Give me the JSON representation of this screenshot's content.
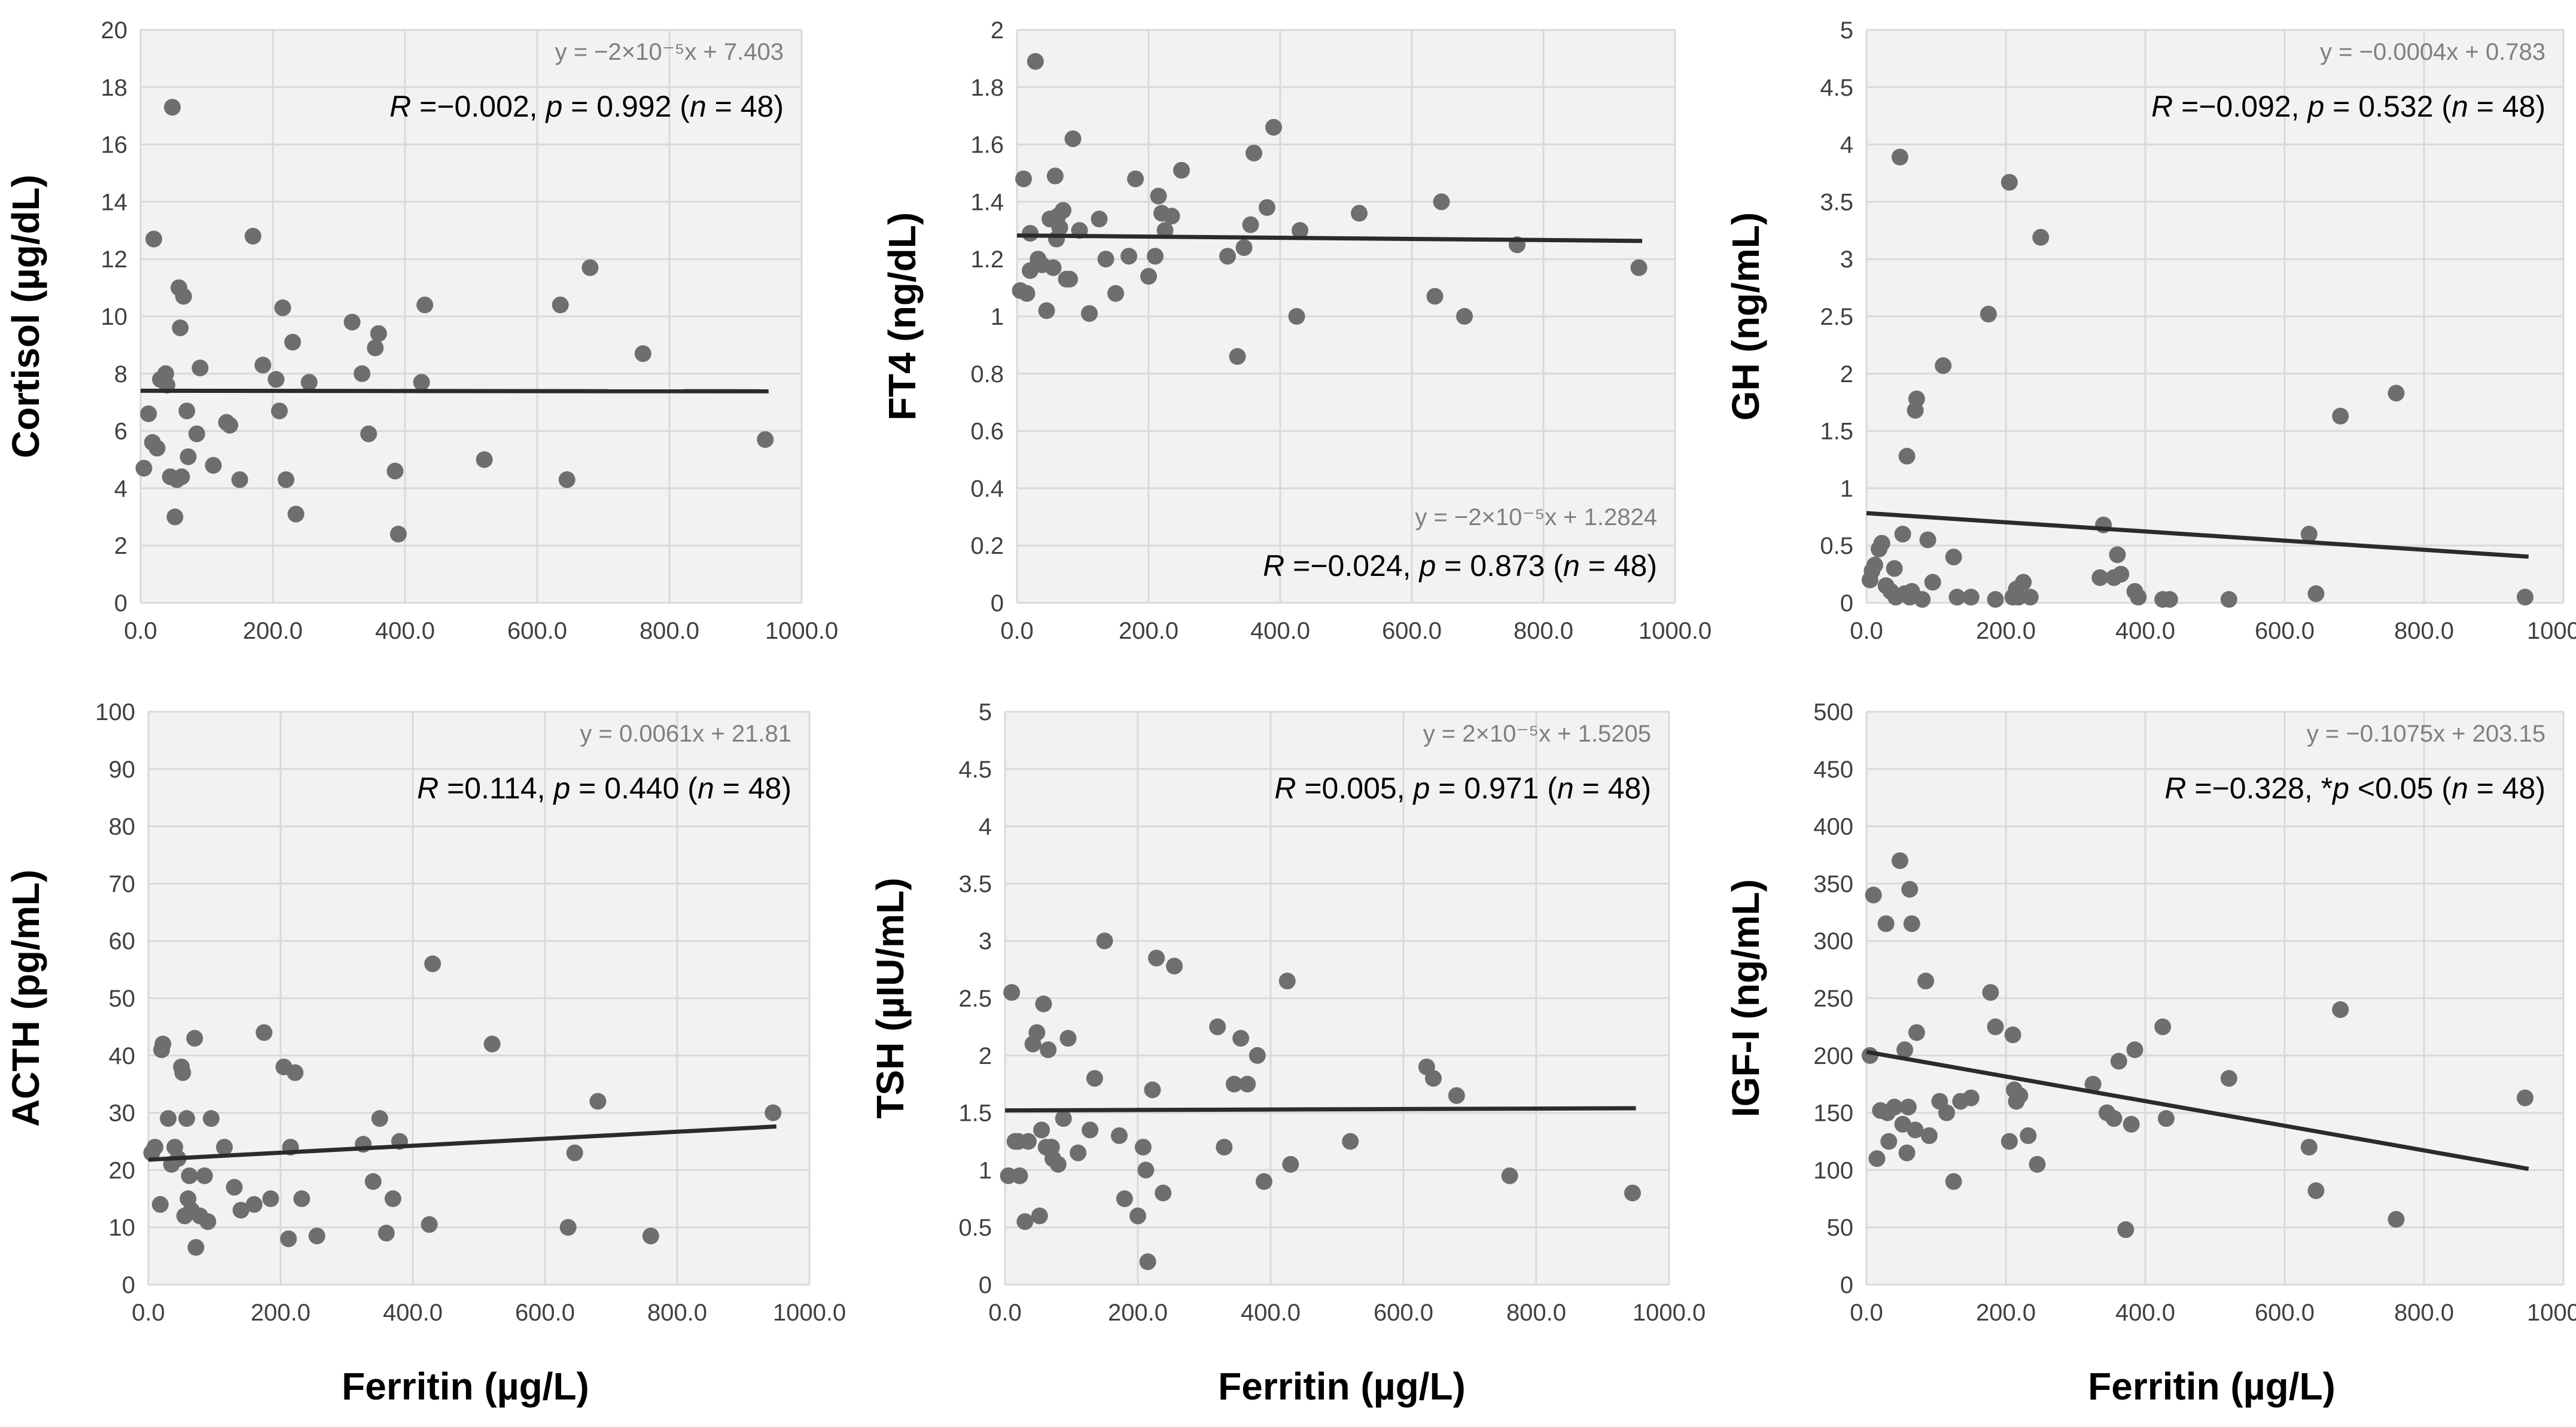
{
  "figure_xlabel": "Ferritin (µg/L)",
  "chart_data": [
    {
      "type": "scatter",
      "ylabel": "Cortisol (µg/dL)",
      "xlim": [
        0,
        1000
      ],
      "ylim": [
        0,
        20
      ],
      "yticks": [
        "0",
        "2",
        "4",
        "6",
        "8",
        "10",
        "12",
        "14",
        "16",
        "18",
        "20"
      ],
      "xticks": [
        "0.0",
        "200.0",
        "400.0",
        "600.0",
        "800.0",
        "1000.0"
      ],
      "grid": true,
      "equation": "y = −2×10⁻⁵x + 7.403",
      "stat_r": "R",
      "stat_rest": " =−0.002, ",
      "stat_p": "p",
      "stat_rest2": " = 0.992 (",
      "stat_n": "n",
      "stat_end": " = 48)",
      "annotation_position": "top-right",
      "trend": {
        "slope": -2e-05,
        "intercept": 7.403,
        "x_range": [
          0,
          950
        ]
      },
      "x": [
        5,
        12,
        18,
        25,
        30,
        38,
        45,
        48,
        52,
        55,
        58,
        60,
        65,
        70,
        72,
        85,
        90,
        110,
        130,
        135,
        150,
        170,
        185,
        205,
        210,
        215,
        220,
        230,
        235,
        255,
        320,
        335,
        345,
        355,
        360,
        385,
        390,
        425,
        430,
        520,
        635,
        645,
        680,
        760,
        945,
        20,
        62,
        40
      ],
      "y": [
        4.7,
        6.6,
        5.6,
        5.4,
        7.8,
        8.0,
        4.4,
        17.3,
        3.0,
        4.3,
        11.0,
        9.6,
        10.7,
        6.7,
        5.1,
        5.9,
        8.2,
        4.8,
        6.3,
        6.2,
        4.3,
        12.8,
        8.3,
        7.8,
        6.7,
        10.3,
        4.3,
        9.1,
        3.1,
        7.7,
        9.8,
        8.0,
        5.9,
        8.9,
        9.4,
        4.6,
        2.4,
        7.7,
        10.4,
        5.0,
        10.4,
        4.3,
        11.7,
        8.7,
        5.7,
        12.7,
        4.4,
        7.6
      ]
    },
    {
      "type": "scatter",
      "ylabel": "FT4 (ng/dL)",
      "xlim": [
        0,
        1000
      ],
      "ylim": [
        0,
        2
      ],
      "yticks": [
        "0",
        "0.2",
        "0.4",
        "0.6",
        "0.8",
        "1",
        "1.2",
        "1.4",
        "1.6",
        "1.8",
        "2"
      ],
      "xticks": [
        "0.0",
        "200.0",
        "400.0",
        "600.0",
        "800.0",
        "1000.0"
      ],
      "grid": true,
      "equation": "y = −2×10⁻⁵x + 1.2824",
      "stat_r": "R",
      "stat_rest": " =−0.024, ",
      "stat_p": "p",
      "stat_rest2": " = 0.873 (",
      "stat_n": "n",
      "stat_end": " = 48)",
      "annotation_position": "bottom-right",
      "trend": {
        "slope": -2e-05,
        "intercept": 1.2824,
        "x_range": [
          0,
          950
        ]
      },
      "x": [
        5,
        10,
        15,
        20,
        28,
        32,
        38,
        45,
        50,
        55,
        58,
        60,
        65,
        70,
        75,
        80,
        85,
        110,
        125,
        135,
        150,
        170,
        180,
        200,
        210,
        215,
        220,
        225,
        235,
        250,
        320,
        335,
        345,
        355,
        360,
        380,
        390,
        425,
        430,
        520,
        635,
        645,
        680,
        760,
        945,
        20,
        62,
        95
      ],
      "y": [
        1.09,
        1.48,
        1.08,
        1.16,
        1.89,
        1.2,
        1.18,
        1.02,
        1.34,
        1.17,
        1.49,
        1.27,
        1.31,
        1.37,
        1.13,
        1.13,
        1.62,
        1.01,
        1.34,
        1.2,
        1.08,
        1.21,
        1.48,
        1.14,
        1.21,
        1.42,
        1.36,
        1.3,
        1.35,
        1.51,
        1.21,
        0.86,
        1.24,
        1.32,
        1.57,
        1.38,
        1.66,
        1.0,
        1.3,
        1.36,
        1.07,
        1.4,
        1.0,
        1.25,
        1.17,
        1.29,
        1.35,
        1.3
      ]
    },
    {
      "type": "scatter",
      "ylabel": "GH (ng/mL)",
      "xlim": [
        0,
        1000
      ],
      "ylim": [
        0,
        5
      ],
      "yticks": [
        "0",
        "0.5",
        "1",
        "1.5",
        "2",
        "2.5",
        "3",
        "3.5",
        "4",
        "4.5",
        "5"
      ],
      "xticks": [
        "0.0",
        "200.0",
        "400.0",
        "600.0",
        "800.0",
        "1000.0"
      ],
      "grid": true,
      "equation": "y = −0.0004x + 0.783",
      "stat_r": "R",
      "stat_rest": " =−0.092, ",
      "stat_p": "p",
      "stat_rest2": " = 0.532 (",
      "stat_n": "n",
      "stat_end": " = 48)",
      "annotation_position": "top-right",
      "trend": {
        "slope": -0.0004,
        "intercept": 0.783,
        "x_range": [
          0,
          950
        ]
      },
      "x": [
        5,
        8,
        12,
        18,
        22,
        28,
        35,
        42,
        48,
        52,
        55,
        58,
        62,
        65,
        70,
        72,
        80,
        88,
        95,
        110,
        125,
        130,
        150,
        175,
        185,
        205,
        210,
        215,
        218,
        225,
        235,
        250,
        335,
        340,
        355,
        360,
        365,
        385,
        390,
        425,
        435,
        520,
        635,
        645,
        680,
        760,
        945,
        40
      ],
      "y": [
        0.2,
        0.28,
        0.33,
        0.47,
        0.52,
        0.15,
        0.1,
        0.05,
        3.89,
        0.6,
        0.08,
        1.28,
        0.05,
        0.1,
        1.68,
        1.78,
        0.03,
        0.55,
        0.18,
        2.07,
        0.4,
        0.05,
        0.05,
        2.52,
        0.03,
        3.67,
        0.05,
        0.12,
        0.05,
        0.18,
        0.05,
        3.19,
        0.22,
        0.68,
        0.22,
        0.42,
        0.25,
        0.1,
        0.05,
        0.03,
        0.03,
        0.03,
        0.6,
        0.08,
        1.63,
        1.83,
        0.05,
        0.3
      ]
    },
    {
      "type": "scatter",
      "ylabel": "ACTH (pg/mL)",
      "xlim": [
        0,
        1000
      ],
      "ylim": [
        0,
        100
      ],
      "yticks": [
        "0",
        "10",
        "20",
        "30",
        "40",
        "50",
        "60",
        "70",
        "80",
        "90",
        "100"
      ],
      "xticks": [
        "0.0",
        "200.0",
        "400.0",
        "600.0",
        "800.0",
        "1000.0"
      ],
      "grid": true,
      "equation": "y = 0.0061x + 21.81",
      "stat_r": "R",
      "stat_rest": " =0.114, ",
      "stat_p": "p",
      "stat_rest2": " = 0.440 (",
      "stat_n": "n",
      "stat_end": " = 48)",
      "annotation_position": "top-right",
      "trend": {
        "slope": 0.0061,
        "intercept": 21.81,
        "x_range": [
          0,
          950
        ]
      },
      "x": [
        5,
        10,
        18,
        22,
        30,
        35,
        45,
        50,
        52,
        55,
        58,
        60,
        62,
        65,
        70,
        72,
        78,
        85,
        90,
        115,
        130,
        140,
        160,
        175,
        185,
        205,
        212,
        215,
        222,
        232,
        255,
        325,
        340,
        350,
        360,
        370,
        380,
        425,
        430,
        520,
        635,
        645,
        680,
        760,
        945,
        20,
        40,
        95
      ],
      "y": [
        23,
        24,
        14,
        42,
        29,
        21,
        22,
        38,
        37,
        12,
        29,
        15,
        19,
        13,
        43,
        6.5,
        12,
        19,
        11,
        24,
        17,
        13,
        14,
        44,
        15,
        38,
        8,
        24,
        37,
        15,
        8.5,
        24.5,
        18,
        29,
        9,
        15,
        25,
        10.5,
        56,
        42,
        10,
        23,
        32,
        8.5,
        30,
        41,
        24,
        29
      ]
    },
    {
      "type": "scatter",
      "ylabel": "TSH (µIU/mL)",
      "xlim": [
        0,
        1000
      ],
      "ylim": [
        0,
        5
      ],
      "yticks": [
        "0",
        "0.5",
        "1",
        "1.5",
        "2",
        "2.5",
        "3",
        "3.5",
        "4",
        "4.5",
        "5"
      ],
      "xticks": [
        "0.0",
        "200.0",
        "400.0",
        "600.0",
        "800.0",
        "1000.0"
      ],
      "grid": true,
      "equation": "y = 2×10⁻⁵x + 1.5205",
      "stat_r": "R",
      "stat_rest": " =0.005, ",
      "stat_p": "p",
      "stat_rest2": " = 0.971 (",
      "stat_n": "n",
      "stat_end": " = 48)",
      "annotation_position": "top-right",
      "trend": {
        "slope": 2e-05,
        "intercept": 1.5205,
        "x_range": [
          0,
          950
        ]
      },
      "x": [
        5,
        10,
        15,
        22,
        30,
        35,
        42,
        48,
        52,
        55,
        58,
        62,
        65,
        70,
        72,
        80,
        88,
        95,
        110,
        128,
        135,
        150,
        172,
        180,
        200,
        208,
        212,
        215,
        222,
        228,
        238,
        255,
        320,
        330,
        345,
        355,
        365,
        380,
        390,
        425,
        430,
        520,
        635,
        645,
        680,
        760,
        945,
        20
      ],
      "y": [
        0.95,
        2.55,
        1.25,
        0.95,
        0.55,
        1.25,
        2.1,
        2.2,
        0.6,
        1.35,
        2.45,
        1.2,
        2.05,
        1.2,
        1.1,
        1.05,
        1.45,
        2.15,
        1.15,
        1.35,
        1.8,
        3.0,
        1.3,
        0.75,
        0.6,
        1.2,
        1.0,
        0.2,
        1.7,
        2.85,
        0.8,
        2.78,
        2.25,
        1.2,
        1.75,
        2.15,
        1.75,
        2.0,
        0.9,
        2.65,
        1.05,
        1.25,
        1.9,
        1.8,
        1.65,
        0.95,
        0.8,
        1.25
      ]
    },
    {
      "type": "scatter",
      "ylabel": "IGF-I (ng/mL)",
      "xlim": [
        0,
        1000
      ],
      "ylim": [
        0,
        500
      ],
      "yticks": [
        "0",
        "50",
        "100",
        "150",
        "200",
        "250",
        "300",
        "350",
        "400",
        "450",
        "500"
      ],
      "xticks": [
        "0.0",
        "200.0",
        "400.0",
        "600.0",
        "800.0",
        "1000.0"
      ],
      "grid": true,
      "equation": "y = −0.1075x + 203.15",
      "stat_r": "R",
      "stat_rest": " =−0.328, *",
      "stat_p": "p",
      "stat_rest2": " <0.05 (",
      "stat_n": "n",
      "stat_end": " = 48)",
      "annotation_position": "top-right",
      "trend": {
        "slope": -0.1075,
        "intercept": 203.15,
        "x_range": [
          0,
          950
        ]
      },
      "x": [
        5,
        10,
        15,
        20,
        28,
        32,
        40,
        48,
        52,
        55,
        58,
        62,
        65,
        70,
        72,
        85,
        90,
        115,
        125,
        135,
        150,
        178,
        185,
        205,
        210,
        212,
        215,
        220,
        232,
        245,
        325,
        345,
        355,
        362,
        372,
        380,
        385,
        425,
        430,
        520,
        635,
        645,
        680,
        760,
        945,
        60,
        30,
        105
      ],
      "y": [
        200,
        340,
        110,
        152,
        315,
        125,
        155,
        370,
        140,
        205,
        115,
        345,
        315,
        135,
        220,
        265,
        130,
        150,
        90,
        160,
        163,
        255,
        225,
        125,
        218,
        170,
        160,
        165,
        130,
        105,
        175,
        150,
        145,
        195,
        48,
        140,
        205,
        225,
        145,
        180,
        120,
        82,
        240,
        57,
        163,
        155,
        150,
        160
      ]
    }
  ]
}
